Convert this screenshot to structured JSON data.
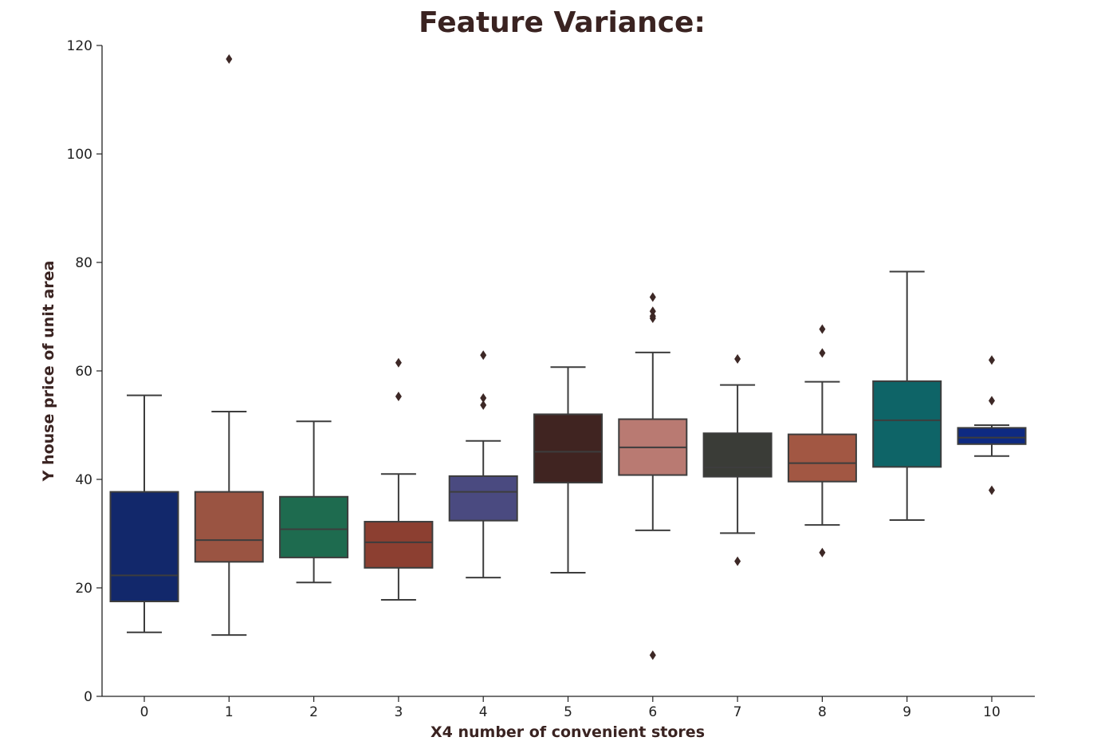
{
  "chart_data": {
    "type": "box",
    "title": "Feature Variance:",
    "xlabel": "X4 number of convenient stores",
    "ylabel": "Y house price of unit area",
    "ylim": [
      0,
      120
    ],
    "yticks": [
      0,
      20,
      40,
      60,
      80,
      100,
      120
    ],
    "grid": false,
    "categories": [
      "0",
      "1",
      "2",
      "3",
      "4",
      "5",
      "6",
      "7",
      "8",
      "9",
      "10"
    ],
    "boxes": [
      {
        "category": "0",
        "whisker_low": 11.8,
        "q1": 17.5,
        "median": 22.3,
        "q3": 37.7,
        "whisker_high": 55.5,
        "fliers": [],
        "color": "#12286b"
      },
      {
        "category": "1",
        "whisker_low": 11.3,
        "q1": 24.8,
        "median": 28.8,
        "q3": 37.7,
        "whisker_high": 52.5,
        "fliers": [
          117.5
        ],
        "color": "#9a5442"
      },
      {
        "category": "2",
        "whisker_low": 21.0,
        "q1": 25.6,
        "median": 30.8,
        "q3": 36.8,
        "whisker_high": 50.7,
        "fliers": [],
        "color": "#1e6b4f"
      },
      {
        "category": "3",
        "whisker_low": 17.8,
        "q1": 23.7,
        "median": 28.4,
        "q3": 32.2,
        "whisker_high": 41.0,
        "fliers": [
          55.3,
          61.5
        ],
        "color": "#8c3f31"
      },
      {
        "category": "4",
        "whisker_low": 21.9,
        "q1": 32.4,
        "median": 37.7,
        "q3": 40.6,
        "whisker_high": 47.1,
        "fliers": [
          53.7,
          55.0,
          62.9
        ],
        "color": "#4a4a80"
      },
      {
        "category": "5",
        "whisker_low": 22.8,
        "q1": 39.4,
        "median": 45.1,
        "q3": 52.0,
        "whisker_high": 60.7,
        "fliers": [],
        "color": "#402421"
      },
      {
        "category": "6",
        "whisker_low": 30.6,
        "q1": 40.8,
        "median": 45.9,
        "q3": 51.1,
        "whisker_high": 63.4,
        "fliers": [
          7.6,
          69.7,
          70.1,
          71.0,
          73.6
        ],
        "color": "#b97a72"
      },
      {
        "category": "7",
        "whisker_low": 30.1,
        "q1": 40.5,
        "median": 42.2,
        "q3": 48.5,
        "whisker_high": 57.4,
        "fliers": [
          24.9,
          62.2
        ],
        "color": "#3a3c37"
      },
      {
        "category": "8",
        "whisker_low": 31.6,
        "q1": 39.6,
        "median": 43.0,
        "q3": 48.3,
        "whisker_high": 58.0,
        "fliers": [
          26.5,
          63.3,
          67.7
        ],
        "color": "#a25743"
      },
      {
        "category": "9",
        "whisker_low": 32.5,
        "q1": 42.3,
        "median": 50.9,
        "q3": 58.1,
        "whisker_high": 78.3,
        "fliers": [],
        "color": "#0e6467"
      },
      {
        "category": "10",
        "whisker_low": 44.3,
        "q1": 46.5,
        "median": 47.7,
        "q3": 49.5,
        "whisker_high": 50.0,
        "fliers": [
          38.0,
          54.5,
          62.0
        ],
        "color": "#0e2a82"
      }
    ]
  }
}
